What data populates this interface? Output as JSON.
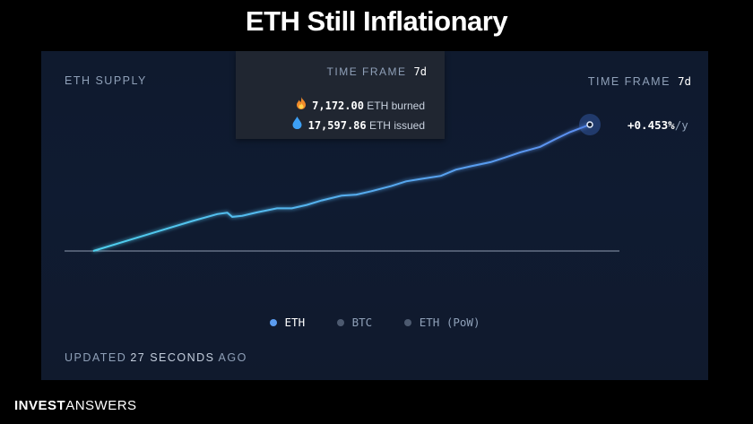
{
  "slide_title": "ETH Still Inflationary",
  "panel": {
    "label": "ETH SUPPLY",
    "time_frame_label": "TIME FRAME",
    "time_frame_value": "7d",
    "rate_value": "+0.453%",
    "rate_unit": "/y",
    "updated_prefix": "UPDATED",
    "updated_count": "27 SECONDS",
    "updated_suffix": "AGO"
  },
  "tooltip": {
    "time_frame_label": "TIME FRAME",
    "time_frame_value": "7d",
    "burned_icon": "fire-icon",
    "burned_value": "7,172.00",
    "burned_unit": "ETH",
    "burned_label": "burned",
    "issued_icon": "droplet-icon",
    "issued_value": "17,597.86",
    "issued_unit": "ETH",
    "issued_label": "issued"
  },
  "legend": [
    {
      "label": "ETH",
      "color": "#5b9cf0",
      "active": true
    },
    {
      "label": "BTC",
      "color": "#4d5a70",
      "active": false
    },
    {
      "label": "ETH (PoW)",
      "color": "#4d5a70",
      "active": false
    }
  ],
  "colors": {
    "line_start": "#4fd0ee",
    "line_end": "#5c8ef0",
    "baseline": "#8e9bb0",
    "panel_bg": "#0f1a2e"
  },
  "brand": {
    "bold": "INVEST",
    "light": "ANSWERS"
  },
  "chart_data": {
    "type": "line",
    "title": "",
    "xlabel": "",
    "ylabel": "",
    "x": [
      0,
      0.05,
      0.1,
      0.15,
      0.2,
      0.25,
      0.27,
      0.28,
      0.3,
      0.33,
      0.37,
      0.4,
      0.43,
      0.46,
      0.5,
      0.53,
      0.56,
      0.6,
      0.63,
      0.66,
      0.7,
      0.73,
      0.76,
      0.8,
      0.83,
      0.86,
      0.9,
      0.93,
      0.96,
      1.0
    ],
    "y": [
      0,
      0.022,
      0.044,
      0.066,
      0.088,
      0.108,
      0.112,
      0.1,
      0.103,
      0.113,
      0.125,
      0.125,
      0.135,
      0.148,
      0.162,
      0.165,
      0.175,
      0.19,
      0.204,
      0.211,
      0.22,
      0.238,
      0.248,
      0.26,
      0.274,
      0.289,
      0.305,
      0.327,
      0.348,
      0.37
    ],
    "ylim": [
      -0.02,
      0.42
    ],
    "series": [
      {
        "name": "ETH"
      }
    ]
  }
}
